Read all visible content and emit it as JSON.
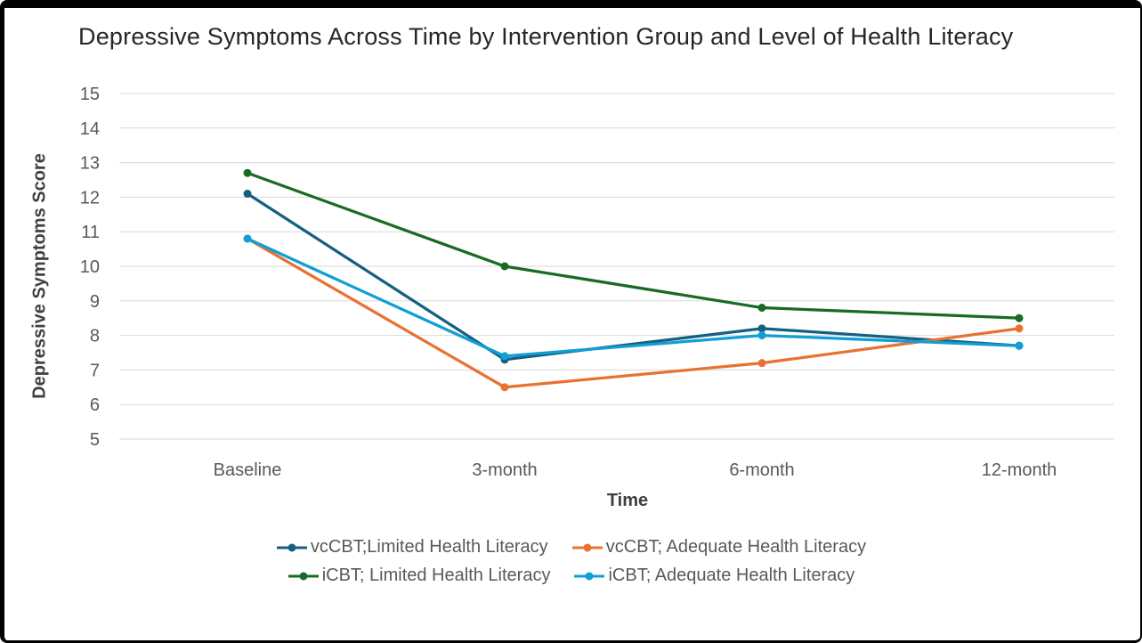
{
  "window": {
    "background": "#ffffff",
    "border_color": "#000000"
  },
  "chart_data": {
    "type": "line",
    "title": "Depressive Symptoms Across Time by Intervention Group and Level of Health Literacy",
    "xlabel": "Time",
    "ylabel": "Depressive Symptoms Score",
    "categories": [
      "Baseline",
      "3-month",
      "6-month",
      "12-month"
    ],
    "series": [
      {
        "name": "vcCBT;Limited Health Literacy",
        "color": "#156082",
        "values": [
          12.1,
          7.3,
          8.2,
          7.7
        ]
      },
      {
        "name": "vcCBT; Adequate Health Literacy",
        "color": "#E97132",
        "values": [
          10.8,
          6.5,
          7.2,
          8.2
        ]
      },
      {
        "name": "iCBT; Limited Health Literacy",
        "color": "#196B24",
        "values": [
          12.7,
          10.0,
          8.8,
          8.5
        ]
      },
      {
        "name": "iCBT; Adequate Health Literacy",
        "color": "#0F9ED5",
        "values": [
          10.8,
          7.4,
          8.0,
          7.7
        ]
      }
    ],
    "ylim": [
      5,
      15
    ],
    "ytick_step": 1,
    "ytick_labels": [
      "5",
      "6",
      "7",
      "8",
      "9",
      "10",
      "11",
      "12",
      "13",
      "14",
      "15"
    ],
    "grid": true,
    "gridline_color": "#D9D9D9",
    "tick_label_color": "#595959",
    "axis_title_color": "#404040",
    "title_color": "#262626",
    "legend_position": "bottom",
    "legend_rows": 2,
    "marker": "circle",
    "line_width": 3.25
  }
}
